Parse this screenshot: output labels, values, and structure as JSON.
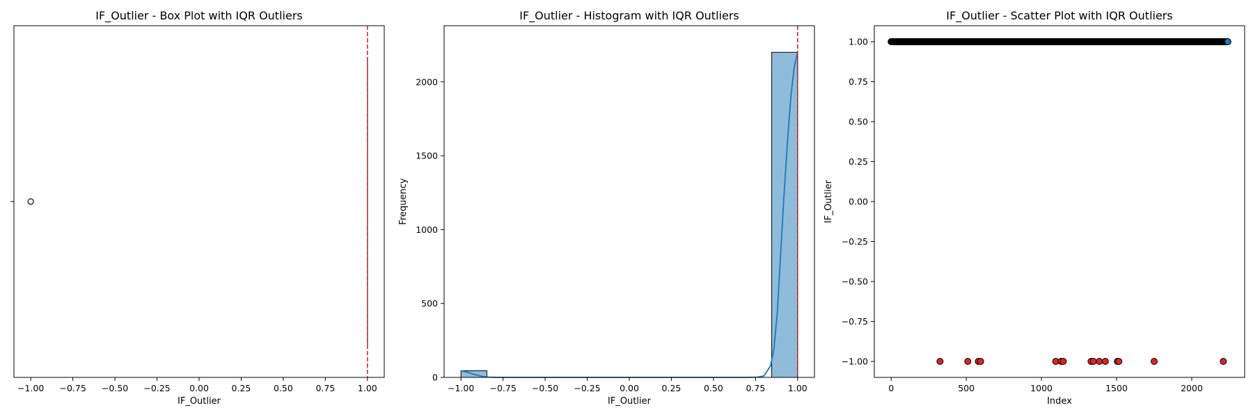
{
  "figure": {
    "panels": [
      "box",
      "histogram",
      "scatter"
    ]
  },
  "chart_data": [
    {
      "type": "box",
      "title": "IF_Outlier - Box Plot with IQR Outliers",
      "xlabel": "IF_Outlier",
      "ylabel": "",
      "xlim": [
        -1.1,
        1.1
      ],
      "xticks": [
        -1.0,
        -0.75,
        -0.5,
        -0.25,
        0.0,
        0.25,
        0.5,
        0.75,
        1.0
      ],
      "xtick_labels": [
        "−1.00",
        "−0.75",
        "−0.50",
        "−0.25",
        "0.00",
        "0.25",
        "0.50",
        "0.75",
        "1.00"
      ],
      "box": {
        "q1": 1.0,
        "median": 1.0,
        "q3": 1.0,
        "whisker_low": 1.0,
        "whisker_high": 1.0
      },
      "outliers": [
        -1.0
      ],
      "threshold_lines": [
        1.0
      ],
      "threshold_color": "#d62728",
      "grid": false
    },
    {
      "type": "bar",
      "subtype": "histogram_with_kde",
      "title": "IF_Outlier - Histogram with IQR Outliers",
      "xlabel": "IF_Outlier",
      "ylabel": "Frequency",
      "xlim": [
        -1.1,
        1.1
      ],
      "ylim": [
        0,
        2380
      ],
      "xticks": [
        -1.0,
        -0.75,
        -0.5,
        -0.25,
        0.0,
        0.25,
        0.5,
        0.75,
        1.0
      ],
      "xtick_labels": [
        "−1.00",
        "−0.75",
        "−0.50",
        "−0.25",
        "0.00",
        "0.25",
        "0.50",
        "0.75",
        "1.00"
      ],
      "yticks": [
        0,
        500,
        1000,
        1500,
        2000
      ],
      "ytick_labels": [
        "0",
        "500",
        "1000",
        "1500",
        "2000"
      ],
      "bins": [
        {
          "x0": -1.0,
          "x1": -0.846,
          "count": 45
        },
        {
          "x0": 0.846,
          "x1": 1.0,
          "count": 2200
        }
      ],
      "kde": [
        [
          -1.0,
          45
        ],
        [
          -0.96,
          34
        ],
        [
          -0.92,
          20
        ],
        [
          -0.88,
          8
        ],
        [
          -0.84,
          2
        ],
        [
          -0.78,
          0
        ],
        [
          0.7,
          0
        ],
        [
          0.76,
          2
        ],
        [
          0.8,
          10
        ],
        [
          0.84,
          80
        ],
        [
          0.86,
          200
        ],
        [
          0.88,
          450
        ],
        [
          0.9,
          850
        ],
        [
          0.92,
          1250
        ],
        [
          0.94,
          1600
        ],
        [
          0.96,
          1900
        ],
        [
          0.98,
          2100
        ],
        [
          1.0,
          2200
        ]
      ],
      "threshold_lines": [
        1.0
      ],
      "bar_color": "#8fbcdb",
      "kde_color": "#1f77b4",
      "threshold_color": "#d62728",
      "grid": false
    },
    {
      "type": "scatter",
      "title": "IF_Outlier - Scatter Plot with IQR Outliers",
      "xlabel": "Index",
      "ylabel": "IF_Outlier",
      "xlim": [
        -112,
        2352
      ],
      "ylim": [
        -1.1,
        1.1
      ],
      "xticks": [
        0,
        500,
        1000,
        1500,
        2000
      ],
      "xtick_labels": [
        "0",
        "500",
        "1000",
        "1500",
        "2000"
      ],
      "yticks": [
        -1.0,
        -0.75,
        -0.5,
        -0.25,
        0.0,
        0.25,
        0.5,
        0.75,
        1.0
      ],
      "ytick_labels": [
        "−1.00",
        "−0.75",
        "−0.50",
        "−0.25",
        "0.00",
        "0.25",
        "0.50",
        "0.75",
        "1.00"
      ],
      "normal_band": {
        "x_from": 0,
        "x_to": 2240,
        "y": 1.0
      },
      "normal_last_point": [
        2240,
        1.0
      ],
      "outliers": [
        [
          325,
          -1.0
        ],
        [
          510,
          -1.0
        ],
        [
          580,
          -1.0
        ],
        [
          595,
          -1.0
        ],
        [
          1095,
          -1.0
        ],
        [
          1130,
          -1.0
        ],
        [
          1145,
          -1.0
        ],
        [
          1330,
          -1.0
        ],
        [
          1345,
          -1.0
        ],
        [
          1385,
          -1.0
        ],
        [
          1425,
          -1.0
        ],
        [
          1505,
          -1.0
        ],
        [
          1515,
          -1.0
        ],
        [
          1750,
          -1.0
        ],
        [
          2210,
          -1.0
        ]
      ],
      "normal_color": "#1f77b4",
      "outlier_color": "#d62728",
      "grid": false
    }
  ]
}
